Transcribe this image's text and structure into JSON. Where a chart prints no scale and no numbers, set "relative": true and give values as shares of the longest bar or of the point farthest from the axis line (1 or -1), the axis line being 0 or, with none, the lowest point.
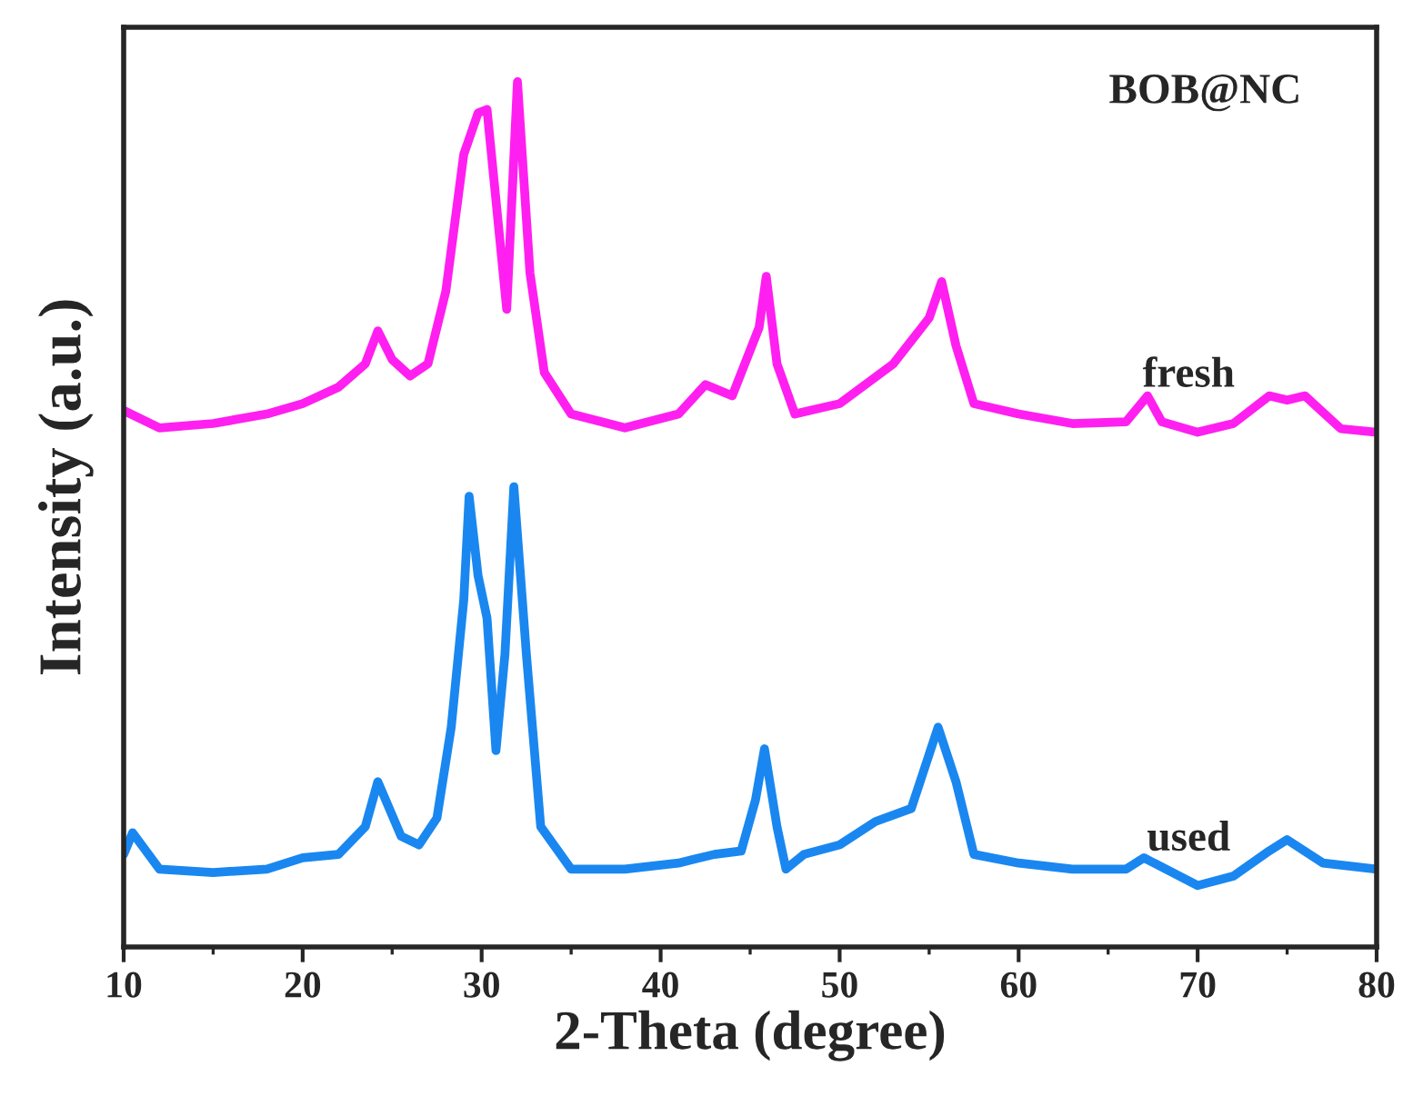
{
  "chart_data": {
    "type": "line",
    "relative": true,
    "xlabel": "2-Theta (degree)",
    "ylabel": "Intensity (a.u.)",
    "xlim": [
      10,
      80
    ],
    "xticks": [
      10,
      20,
      30,
      40,
      50,
      60,
      70,
      80
    ],
    "tick_labels": "x",
    "legend": false,
    "annotations": [
      "BOB@NC"
    ],
    "series": [
      {
        "name": "fresh",
        "color": "#ff1ff0",
        "x": [
          10,
          12,
          15,
          18,
          20,
          22,
          23.5,
          24.2,
          25,
          26,
          27,
          28,
          29,
          29.8,
          30.3,
          31,
          31.4,
          32,
          32.7,
          33.5,
          35,
          38,
          41,
          42.5,
          44,
          45.5,
          45.9,
          46.5,
          47.5,
          50,
          53,
          55,
          55.7,
          56.5,
          57.5,
          60,
          63,
          66,
          67.2,
          68,
          70,
          72,
          74,
          75,
          76,
          78,
          80
        ],
        "values": [
          0.62,
          0.6,
          0.605,
          0.616,
          0.628,
          0.647,
          0.674,
          0.712,
          0.679,
          0.66,
          0.674,
          0.758,
          0.916,
          0.964,
          0.968,
          0.821,
          0.737,
          1.0,
          0.779,
          0.664,
          0.616,
          0.6,
          0.616,
          0.65,
          0.637,
          0.716,
          0.775,
          0.674,
          0.616,
          0.628,
          0.674,
          0.727,
          0.769,
          0.695,
          0.628,
          0.616,
          0.605,
          0.607,
          0.637,
          0.607,
          0.595,
          0.605,
          0.637,
          0.632,
          0.637,
          0.599,
          0.595
        ]
      },
      {
        "name": "used",
        "color": "#1a87f0",
        "x": [
          10,
          10.5,
          12,
          15,
          18,
          20,
          22,
          23.5,
          24.2,
          25.5,
          26.5,
          27.5,
          28.3,
          29,
          29.3,
          29.8,
          30.3,
          30.8,
          31.3,
          31.8,
          32.5,
          33.3,
          35,
          38,
          41,
          43,
          44.5,
          45.3,
          45.8,
          46.5,
          47,
          48,
          50,
          52,
          54,
          55.5,
          56.5,
          57.5,
          60,
          63,
          66,
          67,
          70,
          72,
          74,
          75,
          77,
          80
        ],
        "values": [
          0.107,
          0.132,
          0.09,
          0.086,
          0.09,
          0.103,
          0.107,
          0.139,
          0.191,
          0.128,
          0.118,
          0.149,
          0.254,
          0.401,
          0.521,
          0.429,
          0.38,
          0.227,
          0.338,
          0.532,
          0.338,
          0.139,
          0.09,
          0.09,
          0.097,
          0.107,
          0.111,
          0.17,
          0.229,
          0.139,
          0.09,
          0.107,
          0.118,
          0.145,
          0.16,
          0.254,
          0.191,
          0.107,
          0.097,
          0.09,
          0.09,
          0.103,
          0.071,
          0.082,
          0.111,
          0.124,
          0.097,
          0.09
        ]
      }
    ]
  }
}
